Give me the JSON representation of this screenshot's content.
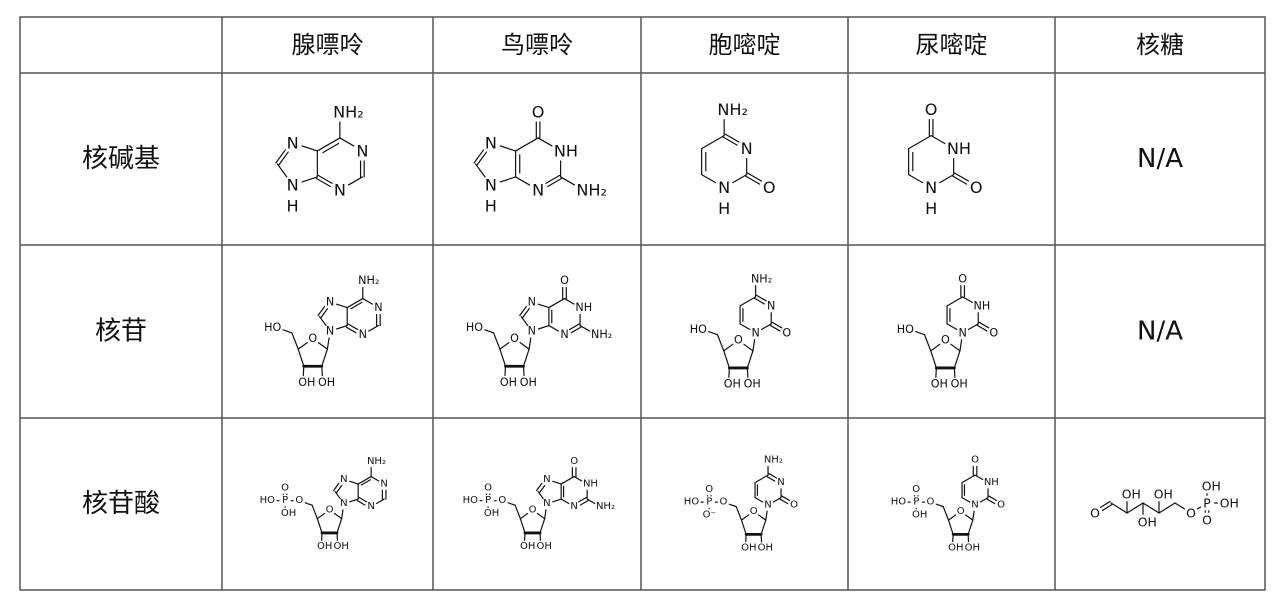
{
  "table": {
    "header": [
      "腺嘌呤",
      "鸟嘌呤",
      "胞嘧啶",
      "尿嘧啶",
      "核糖"
    ],
    "rows": [
      {
        "label": "核碱基",
        "cells": [
          {
            "base": [
              "NH₂",
              "N",
              "N",
              "N",
              "N",
              "H"
            ]
          },
          {
            "base": [
              "O",
              "NH",
              "NH₂",
              "N",
              "N",
              "N",
              "H"
            ]
          },
          {
            "base": [
              "NH₂",
              "N",
              "O",
              "N",
              "H"
            ]
          },
          {
            "base": [
              "O",
              "NH",
              "O",
              "N",
              "H"
            ]
          },
          {
            "text": "N/A"
          }
        ]
      },
      {
        "label": "核苷",
        "cells": [
          {
            "base": [
              "NH₂",
              "N",
              "N",
              "N",
              "N"
            ],
            "sugar": [
              "HO",
              "O",
              "OH",
              "OH"
            ]
          },
          {
            "base": [
              "O",
              "NH",
              "NH₂",
              "N",
              "N",
              "N"
            ],
            "sugar": [
              "HO",
              "O",
              "OH",
              "OH"
            ]
          },
          {
            "base": [
              "NH₂",
              "N",
              "O",
              "N"
            ],
            "sugar": [
              "HO",
              "O",
              "OH",
              "OH"
            ]
          },
          {
            "base": [
              "O",
              "NH",
              "O",
              "N"
            ],
            "sugar": [
              "HO",
              "O",
              "OH",
              "OH"
            ]
          },
          {
            "text": "N/A"
          }
        ]
      },
      {
        "label": "核苷酸",
        "cells": [
          {
            "base": [
              "NH₂",
              "N",
              "N",
              "N",
              "N"
            ],
            "sugar": [
              "O",
              "O",
              "OH",
              "OH"
            ],
            "phosphate": [
              "HO",
              "P",
              "O",
              "OH"
            ]
          },
          {
            "base": [
              "O",
              "NH",
              "NH₂",
              "N",
              "N",
              "N"
            ],
            "sugar": [
              "O",
              "O",
              "OH",
              "OH"
            ],
            "phosphate": [
              "HO",
              "P",
              "O",
              "OH"
            ]
          },
          {
            "base": [
              "NH₂",
              "N",
              "O",
              "N"
            ],
            "sugar": [
              "O",
              "O",
              "OH",
              "OH"
            ],
            "phosphate": [
              "HO",
              "P",
              "O",
              "O⁻"
            ]
          },
          {
            "base": [
              "O",
              "NH",
              "O",
              "N"
            ],
            "sugar": [
              "O",
              "O",
              "OH",
              "OH"
            ],
            "phosphate": [
              "HO",
              "P",
              "O",
              "OH"
            ]
          },
          {
            "chain": [
              "O",
              "OH",
              "OH",
              "OH",
              "O",
              "P",
              "OH",
              "O",
              "OH"
            ]
          }
        ]
      }
    ]
  }
}
